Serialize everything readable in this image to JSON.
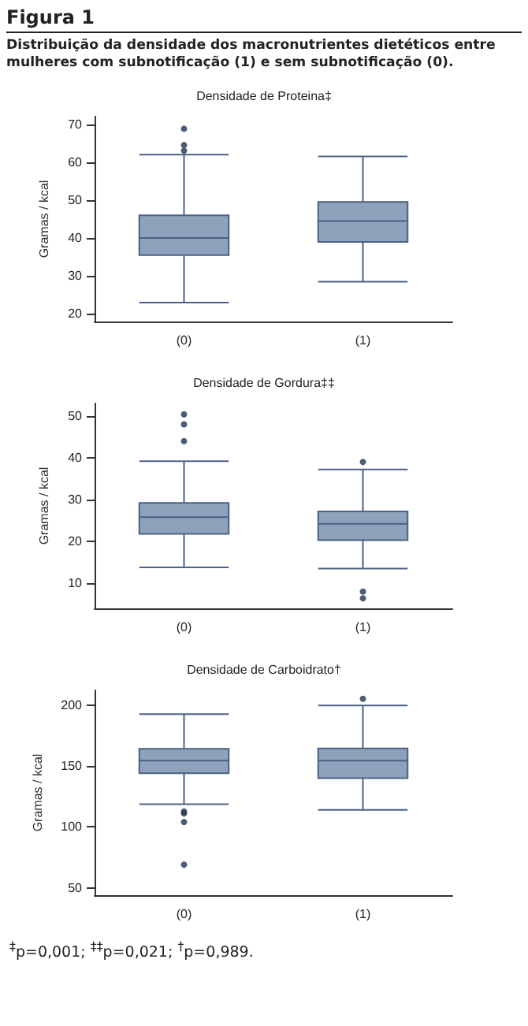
{
  "chart_data": [
    {
      "type": "box",
      "title": "Densidade de Proteina‡",
      "ylabel": "Gramas / kcal",
      "annotations": [
        "Figura 1",
        "Distribuição da densidade dos macronutrientes dietéticos entre mulheres com subnotificação (1) e sem subnotificação (0)."
      ],
      "categories": [
        "(0)",
        "(1)"
      ],
      "ylim": [
        18,
        72
      ],
      "yticks": [
        20,
        30,
        40,
        50,
        60,
        70
      ],
      "grid": false,
      "series": [
        {
          "color": "#8fa2bc",
          "boxes": [
            {
              "low": 23,
              "q1": 35.5,
              "median": 40,
              "q3": 46,
              "high": 62,
              "outliers": [
                63,
                64.5,
                68.8
              ]
            },
            {
              "low": 28.5,
              "q1": 39,
              "median": 44.5,
              "q3": 49.5,
              "high": 61.5
            }
          ]
        }
      ]
    },
    {
      "type": "box",
      "title": "Densidade de Gordura‡‡",
      "ylabel": "Gramas / kcal",
      "categories": [
        "(0)",
        "(1)"
      ],
      "ylim": [
        4,
        53
      ],
      "yticks": [
        10,
        20,
        30,
        40,
        50
      ],
      "grid": false,
      "series": [
        {
          "color": "#8fa2bc",
          "boxes": [
            {
              "low": 13.8,
              "q1": 21.8,
              "median": 25.8,
              "q3": 29.2,
              "high": 39.2,
              "outliers": [
                44,
                48,
                50.4
              ]
            },
            {
              "low": 13.5,
              "q1": 20.3,
              "median": 24.2,
              "q3": 27.2,
              "high": 37.2,
              "outliers": [
                6.4,
                8,
                39
              ]
            }
          ]
        }
      ]
    },
    {
      "type": "box",
      "title": "Densidade de Carboidrato†",
      "ylabel": "Gramas / kcal",
      "annotations": [
        "$^{‡}$p=0,001; $^{‡‡}$p=0,021; $^{†}$p=0,989."
      ],
      "categories": [
        "(0)",
        "(1)"
      ],
      "ylim": [
        44,
        212
      ],
      "yticks": [
        50,
        100,
        150,
        200
      ],
      "grid": false,
      "series": [
        {
          "color": "#8fa2bc",
          "boxes": [
            {
              "low": 118.7,
              "q1": 144,
              "median": 154.4,
              "q3": 164,
              "high": 192.5,
              "outliers": [
                69,
                104,
                111,
                112.7
              ]
            },
            {
              "low": 114,
              "q1": 140,
              "median": 154.4,
              "q3": 164.3,
              "high": 199.6,
              "outliers": [
                205
              ]
            }
          ]
        }
      ]
    }
  ]
}
